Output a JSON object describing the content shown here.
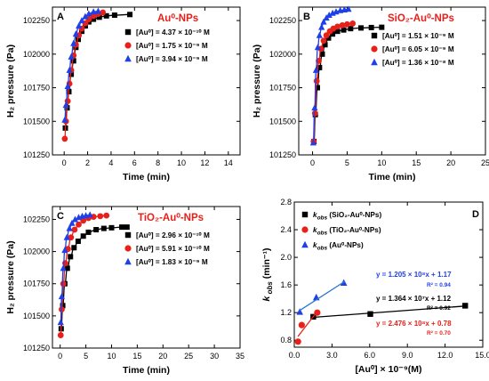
{
  "colors": {
    "black": "#000000",
    "red": "#e8201a",
    "blue": "#1f3fe8",
    "fit_blue": "#2a77c9"
  },
  "chart_data": [
    {
      "id": "A",
      "type": "scatter",
      "letter": "A",
      "title": "Au⁰-NPs",
      "title_color": "#e8201a",
      "xlabel": "Time (min)",
      "ylabel": "H₂ pressure (Pa)",
      "xlim": [
        -1,
        15
      ],
      "ylim": [
        101250,
        102350
      ],
      "xticks": [
        0,
        2,
        4,
        6,
        8,
        10,
        12,
        14
      ],
      "yticks": [
        101250,
        101500,
        101750,
        102000,
        102250
      ],
      "legend_position": "right",
      "series": [
        {
          "name": "[Au⁰] = 4.37 × 10⁻¹⁰ M",
          "color": "#000000",
          "marker": "square",
          "x": [
            0.1,
            0.25,
            0.4,
            0.6,
            0.8,
            1.0,
            1.2,
            1.5,
            1.8,
            2.1,
            2.5,
            3.0,
            3.6,
            4.3,
            5.6
          ],
          "y": [
            101450,
            101600,
            101720,
            101850,
            101950,
            102050,
            102110,
            102170,
            102210,
            102240,
            102260,
            102275,
            102285,
            102290,
            102295
          ]
        },
        {
          "name": "[Au⁰] = 1.75 × 10⁻⁹ M",
          "color": "#e8201a",
          "marker": "circle",
          "x": [
            0.05,
            0.15,
            0.3,
            0.45,
            0.6,
            0.8,
            1.0,
            1.25,
            1.5,
            1.8,
            2.1,
            2.5,
            2.9,
            3.3
          ],
          "y": [
            101370,
            101500,
            101650,
            101780,
            101880,
            101990,
            102070,
            102140,
            102190,
            102230,
            102260,
            102285,
            102300,
            102310
          ]
        },
        {
          "name": "[Au⁰] = 3.94 × 10⁻⁹ M",
          "color": "#1f3fe8",
          "marker": "triangle",
          "x": [
            0.05,
            0.15,
            0.3,
            0.45,
            0.6,
            0.8,
            1.0,
            1.25,
            1.5,
            1.8,
            2.1,
            2.5,
            2.9
          ],
          "y": [
            101510,
            101620,
            101760,
            101880,
            101980,
            102080,
            102150,
            102210,
            102250,
            102280,
            102300,
            102315,
            102320
          ]
        }
      ]
    },
    {
      "id": "B",
      "type": "scatter",
      "letter": "B",
      "title": "SiO₂-Au⁰-NPs",
      "title_color": "#e8201a",
      "xlabel": "Time (min)",
      "ylabel": "H₂ pressure (Pa)",
      "xlim": [
        -2,
        25
      ],
      "ylim": [
        101250,
        102350
      ],
      "xticks": [
        0,
        5,
        10,
        15,
        20,
        25
      ],
      "yticks": [
        101250,
        101500,
        101750,
        102000,
        102250
      ],
      "legend_position": "right",
      "series": [
        {
          "name": "[Au⁰] = 1.51 × 10⁻⁹ M",
          "color": "#000000",
          "marker": "square",
          "x": [
            0.2,
            0.4,
            0.7,
            1.0,
            1.4,
            1.8,
            2.3,
            2.9,
            3.6,
            4.5,
            5.5,
            7.0,
            8.5,
            10.0
          ],
          "y": [
            101350,
            101550,
            101750,
            101900,
            102000,
            102070,
            102120,
            102150,
            102170,
            102180,
            102190,
            102195,
            102198,
            102200
          ]
        },
        {
          "name": "[Au⁰] = 6.05 × 10⁻⁹ M",
          "color": "#e8201a",
          "marker": "circle",
          "x": [
            0.15,
            0.35,
            0.6,
            0.9,
            1.2,
            1.6,
            2.0,
            2.5,
            3.0,
            3.6,
            4.3,
            5.0,
            5.8
          ],
          "y": [
            101350,
            101560,
            101800,
            101950,
            102040,
            102100,
            102140,
            102170,
            102190,
            102205,
            102215,
            102222,
            102228
          ]
        },
        {
          "name": "[Au⁰] = 1.36 × 10⁻⁸ M",
          "color": "#1f3fe8",
          "marker": "triangle",
          "x": [
            0.1,
            0.3,
            0.5,
            0.75,
            1.0,
            1.3,
            1.6,
            2.0,
            2.4,
            2.9,
            3.4,
            4.0,
            4.6,
            5.2
          ],
          "y": [
            101340,
            101600,
            101880,
            102050,
            102140,
            102200,
            102240,
            102270,
            102290,
            102305,
            102315,
            102325,
            102330,
            102335
          ]
        }
      ]
    },
    {
      "id": "C",
      "type": "scatter",
      "letter": "C",
      "title": "TiO₂-Au⁰-NPs",
      "title_color": "#e8201a",
      "xlabel": "Time (min)",
      "ylabel": "H₂ pressure (Pa)",
      "xlim": [
        -1.5,
        35
      ],
      "ylim": [
        101250,
        102350
      ],
      "xticks": [
        0,
        5,
        10,
        15,
        20,
        25,
        30,
        35
      ],
      "yticks": [
        101250,
        101500,
        101750,
        102000,
        102250
      ],
      "legend_position": "right",
      "series": [
        {
          "name": "[Au⁰] = 2.96 × 10⁻¹⁰ M",
          "color": "#000000",
          "marker": "square",
          "x": [
            0.2,
            0.5,
            0.9,
            1.4,
            2.0,
            2.7,
            3.5,
            4.5,
            5.5,
            7.0,
            8.5,
            10.0,
            12.0,
            13.0
          ],
          "y": [
            101400,
            101580,
            101750,
            101870,
            101960,
            102030,
            102080,
            102120,
            102150,
            102170,
            102180,
            102185,
            102190,
            102190
          ]
        },
        {
          "name": "[Au⁰] = 5.91 × 10⁻¹⁰ M",
          "color": "#e8201a",
          "marker": "circle",
          "x": [
            0.1,
            0.3,
            0.6,
            1.0,
            1.5,
            2.1,
            2.8,
            3.6,
            4.5,
            5.5,
            6.5,
            7.8,
            9.0
          ],
          "y": [
            101350,
            101550,
            101750,
            101910,
            102020,
            102110,
            102170,
            102210,
            102240,
            102260,
            102270,
            102275,
            102280
          ]
        },
        {
          "name": "[Au⁰] = 1.83 × 10⁻⁹ M",
          "color": "#1f3fe8",
          "marker": "triangle",
          "x": [
            0.1,
            0.3,
            0.6,
            0.9,
            1.3,
            1.8,
            2.3,
            2.9,
            3.6,
            4.3,
            5.0,
            5.8
          ],
          "y": [
            101450,
            101650,
            101870,
            102010,
            102110,
            102180,
            102220,
            102250,
            102265,
            102275,
            102280,
            102285
          ]
        }
      ]
    },
    {
      "id": "D",
      "type": "scatter",
      "letter": "D",
      "title": "",
      "xlabel": "[Au⁰] × 10⁻⁹(M)",
      "ylabel": "k obs (min⁻¹)",
      "xlim": [
        0,
        15
      ],
      "ylim": [
        0.7,
        2.8
      ],
      "xticks": [
        0.0,
        3.0,
        6.0,
        9.0,
        12.0,
        15.0
      ],
      "xtick_labels": [
        "0.0",
        "3.0",
        "6.0",
        "9.0",
        "12.0",
        "15.0"
      ],
      "yticks": [
        0.8,
        1.2,
        1.6,
        2.0,
        2.4,
        2.8
      ],
      "ytick_labels": [
        "0.8",
        "1.2",
        "1.6",
        "2.0",
        "2.4",
        "2.8"
      ],
      "legend_position": "top-left",
      "series": [
        {
          "name": "kobs (SiO₂-Au⁰-NPs)",
          "legend_sub": "obs",
          "legend_rest": " (SiO₂-Au⁰-NPs)",
          "color": "#000000",
          "marker": "square",
          "x": [
            1.51,
            6.05,
            13.6
          ],
          "y": [
            1.14,
            1.18,
            1.3
          ]
        },
        {
          "name": "kobs (TiO₂-Au⁰-NPs)",
          "legend_sub": "obs",
          "legend_rest": " (TiO₂-Au⁰-NPs)",
          "color": "#e8201a",
          "marker": "circle",
          "x": [
            0.296,
            0.591,
            1.83
          ],
          "y": [
            0.78,
            1.02,
            1.2
          ]
        },
        {
          "name": "kobs (Au⁰-NPs)",
          "legend_sub": "obs",
          "legend_rest": " (Au⁰-NPs)",
          "color": "#1f3fe8",
          "marker": "triangle",
          "x": [
            0.437,
            1.75,
            3.94
          ],
          "y": [
            1.21,
            1.42,
            1.63
          ]
        }
      ],
      "fits": [
        {
          "equation": "y = 1.205 × 10⁸x + 1.17",
          "r2": "R² = 0.94",
          "color": "#1f3fe8",
          "x": [
            0.4,
            4.0
          ]
        },
        {
          "equation": "y = 1.364 × 10⁷x + 1.12",
          "r2": "R² = 0.92",
          "color": "#000000",
          "x": [
            1.5,
            13.6
          ]
        },
        {
          "equation": "y = 2.476 × 10⁸x + 0.78",
          "r2": "R² = 0.70",
          "color": "#e8201a",
          "x": [
            0.29,
            1.9
          ]
        }
      ]
    }
  ]
}
